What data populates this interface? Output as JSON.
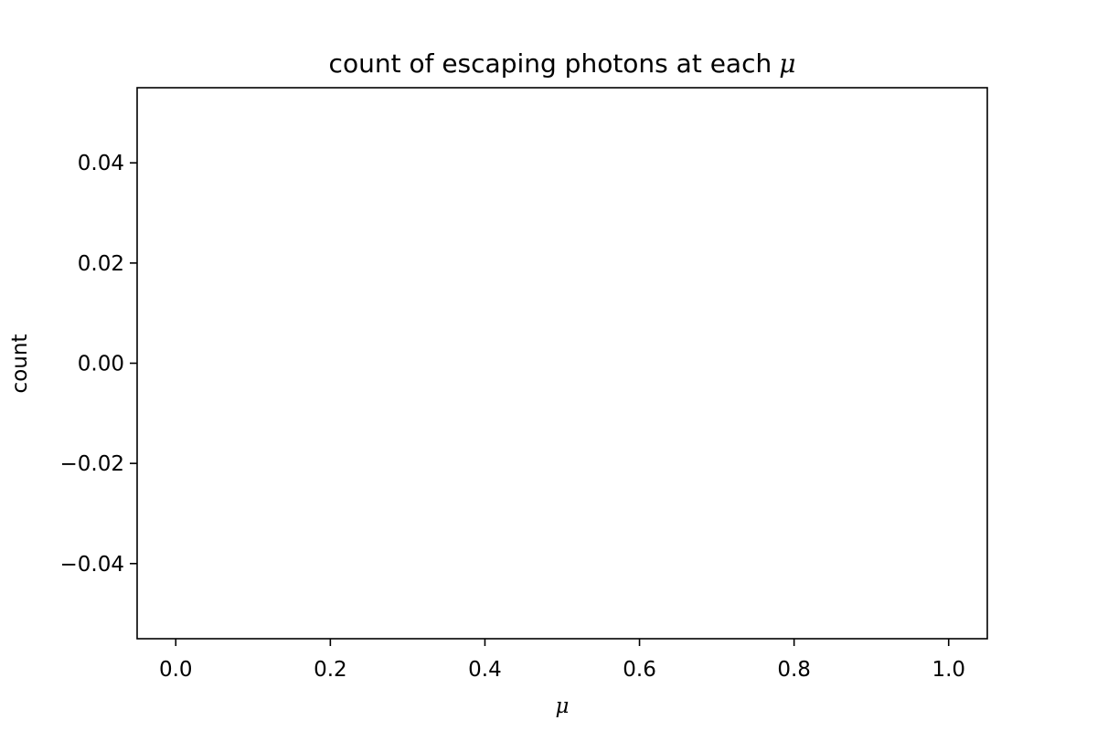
{
  "chart_data": {
    "type": "scatter",
    "title": "count of escaping photons at each",
    "title_symbol": "μ",
    "xlabel": "μ",
    "ylabel": "count",
    "xlim": [
      -0.05,
      1.05
    ],
    "ylim": [
      -0.055,
      0.055
    ],
    "xticks": [
      0.0,
      0.2,
      0.4,
      0.6,
      0.8,
      1.0
    ],
    "xtick_labels": [
      "0.0",
      "0.2",
      "0.4",
      "0.6",
      "0.8",
      "1.0"
    ],
    "yticks": [
      0.04,
      0.02,
      0.0,
      -0.02,
      -0.04
    ],
    "ytick_labels": [
      "0.04",
      "0.02",
      "0.00",
      "−0.02",
      "−0.04"
    ],
    "series": [],
    "grid": false,
    "axis_color": "#000000",
    "background_color": "#ffffff"
  }
}
